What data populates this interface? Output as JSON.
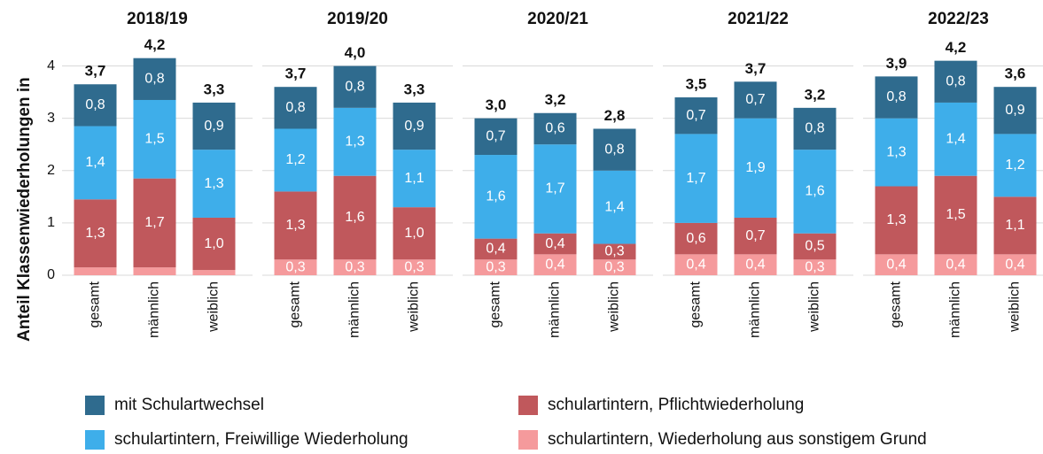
{
  "chart_data": {
    "type": "bar",
    "stacked": true,
    "ylabel": "Anteil Klassenwiederholungen in",
    "facets": [
      "2018/19",
      "2019/20",
      "2020/21",
      "2021/22",
      "2022/23"
    ],
    "categories": [
      "gesamt",
      "männlich",
      "weiblich"
    ],
    "ylim": [
      0,
      4.5
    ],
    "yticks": [
      0,
      1,
      2,
      3,
      4
    ],
    "grid": true,
    "series": [
      {
        "name": "mit Schulartwechsel",
        "color": "#2f6b8e",
        "stack_order": 4,
        "values": [
          [
            0.8,
            0.8,
            0.9
          ],
          [
            0.8,
            0.8,
            0.9
          ],
          [
            0.7,
            0.6,
            0.8
          ],
          [
            0.7,
            0.7,
            0.8
          ],
          [
            0.8,
            0.8,
            0.9
          ]
        ],
        "value_labels": [
          [
            "0,8",
            "0,8",
            "0,9"
          ],
          [
            "0,8",
            "0,8",
            "0,9"
          ],
          [
            "0,7",
            "0,6",
            "0,8"
          ],
          [
            "0,7",
            "0,7",
            "0,8"
          ],
          [
            "0,8",
            "0,8",
            "0,9"
          ]
        ]
      },
      {
        "name": "schulartintern, Pflichtwiederholung",
        "color": "#c0585c",
        "stack_order": 2,
        "values": [
          [
            1.3,
            1.7,
            1.0
          ],
          [
            1.3,
            1.6,
            1.0
          ],
          [
            0.4,
            0.4,
            0.3
          ],
          [
            0.6,
            0.7,
            0.5
          ],
          [
            1.3,
            1.5,
            1.1
          ]
        ],
        "value_labels": [
          [
            "1,3",
            "1,7",
            "1,0"
          ],
          [
            "1,3",
            "1,6",
            "1,0"
          ],
          [
            "0,4",
            "0,4",
            "0,3"
          ],
          [
            "0,6",
            "0,7",
            "0,5"
          ],
          [
            "1,3",
            "1,5",
            "1,1"
          ]
        ]
      },
      {
        "name": "schulartintern, Freiwillige Wiederholung",
        "color": "#3eaeea",
        "stack_order": 3,
        "values": [
          [
            1.4,
            1.5,
            1.3
          ],
          [
            1.2,
            1.3,
            1.1
          ],
          [
            1.6,
            1.7,
            1.4
          ],
          [
            1.7,
            1.9,
            1.6
          ],
          [
            1.3,
            1.4,
            1.2
          ]
        ],
        "value_labels": [
          [
            "1,4",
            "1,5",
            "1,3"
          ],
          [
            "1,2",
            "1,3",
            "1,1"
          ],
          [
            "1,6",
            "1,7",
            "1,4"
          ],
          [
            "1,7",
            "1,9",
            "1,6"
          ],
          [
            "1,3",
            "1,4",
            "1,2"
          ]
        ]
      },
      {
        "name": "schulartintern, Wiederholung aus sonstigem Grund",
        "color": "#f59a9c",
        "stack_order": 1,
        "values": [
          [
            0.15,
            0.15,
            0.1
          ],
          [
            0.3,
            0.3,
            0.3
          ],
          [
            0.3,
            0.4,
            0.3
          ],
          [
            0.4,
            0.4,
            0.3
          ],
          [
            0.4,
            0.4,
            0.4
          ]
        ],
        "value_labels": [
          [
            null,
            null,
            null
          ],
          [
            "0,3",
            "0,3",
            "0,3"
          ],
          [
            "0,3",
            "0,4",
            "0,3"
          ],
          [
            "0,4",
            "0,4",
            "0,3"
          ],
          [
            "0,4",
            "0,4",
            "0,4"
          ]
        ]
      }
    ],
    "totals": {
      "values": [
        [
          3.7,
          4.2,
          3.3
        ],
        [
          3.7,
          4.0,
          3.3
        ],
        [
          3.0,
          3.2,
          2.8
        ],
        [
          3.5,
          3.7,
          3.2
        ],
        [
          3.9,
          4.2,
          3.6
        ]
      ],
      "labels": [
        [
          "3,7",
          "4,2",
          "3,3"
        ],
        [
          "3,7",
          "4,0",
          "3,3"
        ],
        [
          "3,0",
          "3,2",
          "2,8"
        ],
        [
          "3,5",
          "3,7",
          "3,2"
        ],
        [
          "3,9",
          "4,2",
          "3,6"
        ]
      ]
    }
  }
}
